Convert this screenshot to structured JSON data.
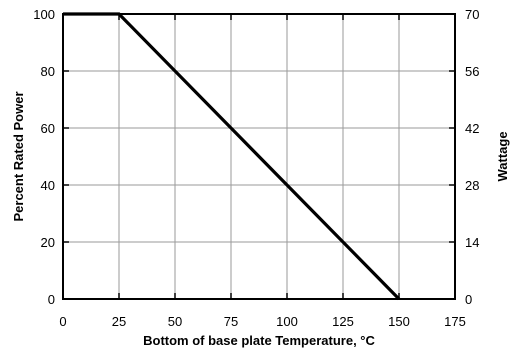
{
  "chart_data": {
    "type": "line",
    "title": "",
    "xlabel": "Bottom of base plate Temperature, °C",
    "ylabel": "Percent Rated Power",
    "y2label": "Wattage",
    "xlim": [
      0,
      175
    ],
    "ylim": [
      0,
      100
    ],
    "y2lim": [
      0,
      70
    ],
    "x_ticks": [
      "0",
      "25",
      "50",
      "75",
      "100",
      "125",
      "150",
      "175"
    ],
    "y_ticks": [
      "0",
      "20",
      "40",
      "60",
      "80",
      "100"
    ],
    "y2_ticks": [
      "0",
      "14",
      "28",
      "42",
      "56",
      "70"
    ],
    "grid": true,
    "series": [
      {
        "x": [
          0,
          25,
          150
        ],
        "y": [
          100,
          100,
          0
        ]
      }
    ]
  }
}
